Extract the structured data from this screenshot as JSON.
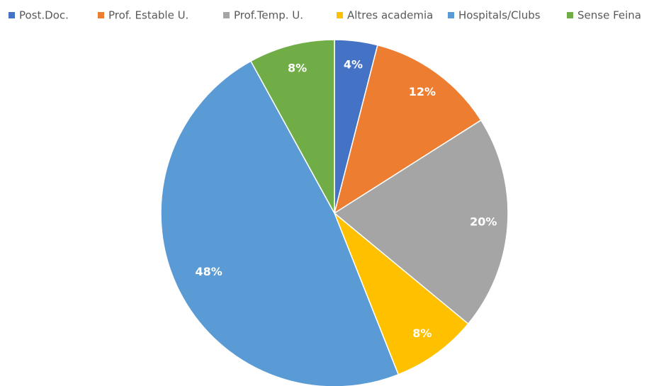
{
  "chart_data": {
    "type": "pie",
    "categories": [
      "Post.Doc.",
      "Prof. Estable U.",
      "Prof.Temp. U.",
      "Altres academia",
      "Hospitals/Clubs",
      "Sense Feina"
    ],
    "values": [
      4,
      12,
      20,
      8,
      48,
      8
    ],
    "value_labels": [
      "4%",
      "12%",
      "20%",
      "8%",
      "48%",
      "8%"
    ],
    "colors": [
      "#4472c4",
      "#ed7d31",
      "#a5a5a5",
      "#ffc000",
      "#5b9bd5",
      "#70ad47"
    ],
    "legend": "top"
  }
}
